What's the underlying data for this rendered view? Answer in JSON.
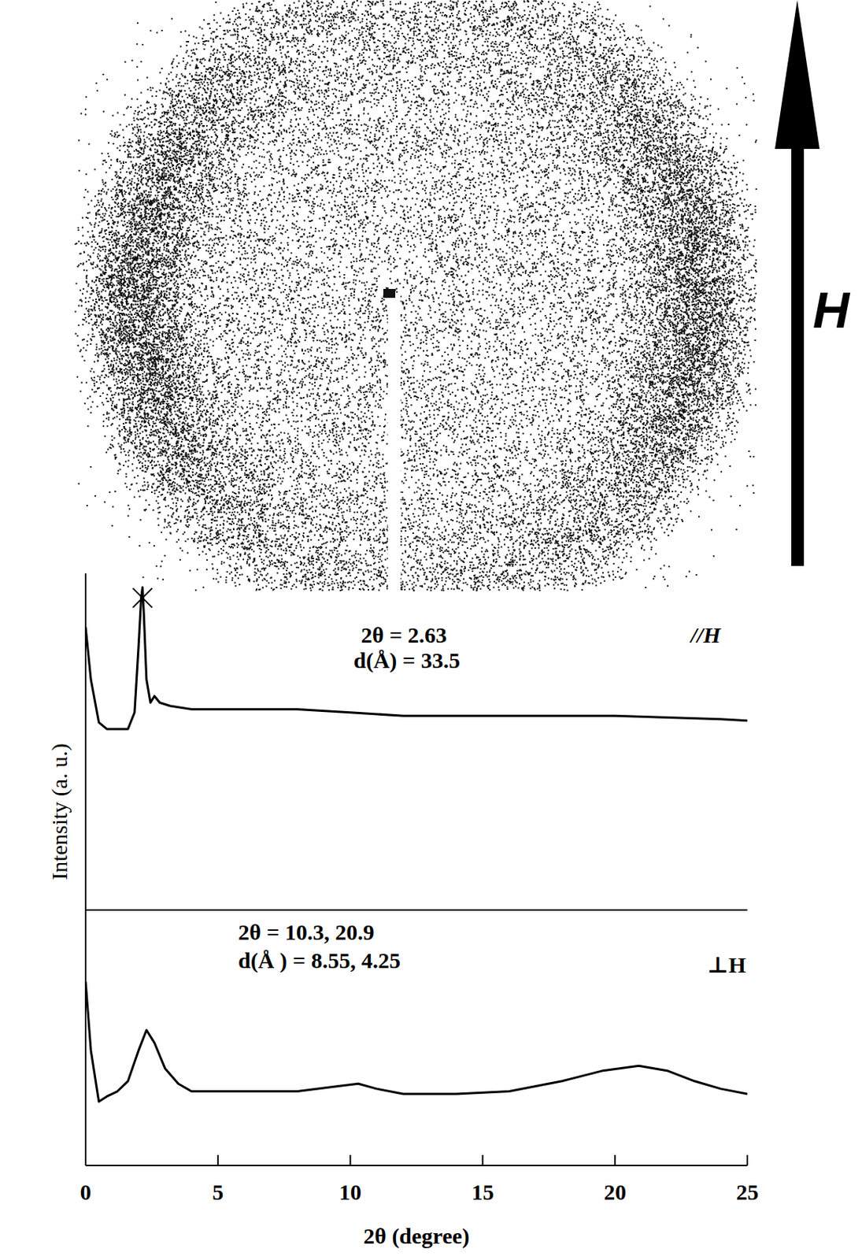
{
  "chart_data": [
    {
      "type": "line",
      "x": [
        0,
        0.2,
        0.5,
        0.8,
        1.2,
        1.6,
        1.85,
        2.0,
        2.1,
        2.15,
        2.2,
        2.3,
        2.45,
        2.6,
        2.8,
        3.2,
        4,
        6,
        8,
        10,
        12,
        14,
        16,
        18,
        20,
        22,
        24,
        25
      ],
      "series": [
        {
          "color": "#000000",
          "values": [
            0.86,
            0.7,
            0.57,
            0.55,
            0.55,
            0.55,
            0.6,
            0.8,
            0.95,
            0.98,
            0.9,
            0.7,
            0.63,
            0.65,
            0.63,
            0.62,
            0.61,
            0.61,
            0.61,
            0.6,
            0.59,
            0.59,
            0.59,
            0.59,
            0.59,
            0.585,
            0.58,
            0.575
          ]
        }
      ],
      "xlim": [
        0,
        25
      ],
      "ylim": [
        0,
        1
      ],
      "tick_labels": false,
      "ylabel": "Intensity (a. u.)",
      "annotations": [
        "2θ = 2.63",
        "d(Å) = 33.5",
        "//H"
      ]
    },
    {
      "type": "line",
      "x": [
        0,
        0.2,
        0.5,
        0.8,
        1.2,
        1.6,
        2.0,
        2.3,
        2.6,
        3.0,
        3.5,
        4,
        6,
        8,
        9.5,
        10.3,
        11,
        12,
        14,
        16,
        18,
        19.5,
        20.9,
        22,
        23,
        24,
        25
      ],
      "series": [
        {
          "color": "#000000",
          "values": [
            0.72,
            0.45,
            0.25,
            0.27,
            0.29,
            0.33,
            0.45,
            0.53,
            0.48,
            0.38,
            0.32,
            0.29,
            0.29,
            0.29,
            0.31,
            0.32,
            0.3,
            0.28,
            0.28,
            0.29,
            0.33,
            0.37,
            0.39,
            0.37,
            0.33,
            0.3,
            0.28
          ]
        }
      ],
      "xlim": [
        0,
        25
      ],
      "ylim": [
        0,
        1
      ],
      "xticks": [
        0,
        5,
        10,
        15,
        20,
        25
      ],
      "tick_labels": "x",
      "xlabel": "2θ (degree)",
      "annotations": [
        "2θ = 10.3, 20.9",
        "d(Å ) = 8.55, 4.25",
        "⊥H"
      ]
    }
  ],
  "pattern": {
    "field_label": "H"
  }
}
